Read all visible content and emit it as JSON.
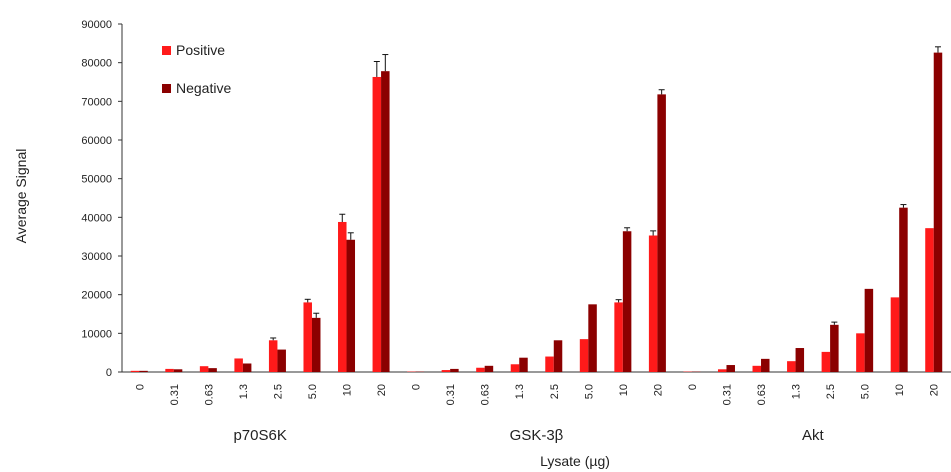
{
  "chart_data": {
    "type": "bar",
    "ylabel": "Average Signal",
    "xlabel": "Lysate (µg)",
    "ylim": [
      0,
      90000
    ],
    "yticks": [
      0,
      10000,
      20000,
      30000,
      40000,
      50000,
      60000,
      70000,
      80000,
      90000
    ],
    "grid": false,
    "legend_position": "top-left",
    "groups": [
      {
        "name": "p70S6K",
        "categories": [
          "0",
          "0.31",
          "0.63",
          "1.3",
          "2.5",
          "5.0",
          "10",
          "20"
        ],
        "series": [
          {
            "name": "Positive",
            "values": [
              300,
              800,
              1500,
              3500,
              8200,
              18000,
              38800,
              76300
            ],
            "errors": [
              0,
              0,
              0,
              0,
              600,
              800,
              2000,
              4000
            ]
          },
          {
            "name": "Negative",
            "values": [
              300,
              700,
              1000,
              2200,
              5800,
              14000,
              34200,
              77800
            ],
            "errors": [
              0,
              0,
              0,
              0,
              0,
              1200,
              1800,
              4300
            ]
          }
        ]
      },
      {
        "name": "GSK-3β",
        "categories": [
          "0",
          "0.31",
          "0.63",
          "1.3",
          "2.5",
          "5.0",
          "10",
          "20"
        ],
        "series": [
          {
            "name": "Positive",
            "values": [
              100,
              500,
              1100,
              2000,
              4000,
              8500,
              18000,
              35300
            ],
            "errors": [
              0,
              0,
              0,
              0,
              0,
              0,
              700,
              1200
            ]
          },
          {
            "name": "Negative",
            "values": [
              100,
              800,
              1600,
              3700,
              8200,
              17500,
              36400,
              71800
            ],
            "errors": [
              0,
              0,
              0,
              0,
              0,
              0,
              900,
              1200
            ]
          }
        ]
      },
      {
        "name": "Akt",
        "categories": [
          "0",
          "0.31",
          "0.63",
          "1.3",
          "2.5",
          "5.0",
          "10",
          "20"
        ],
        "series": [
          {
            "name": "Positive",
            "values": [
              100,
              700,
              1600,
              2800,
              5200,
              10000,
              19300,
              37200
            ],
            "errors": [
              0,
              0,
              0,
              0,
              0,
              0,
              0,
              0
            ]
          },
          {
            "name": "Negative",
            "values": [
              100,
              1800,
              3400,
              6200,
              12200,
              21500,
              42500,
              82600
            ],
            "errors": [
              0,
              0,
              0,
              0,
              700,
              0,
              800,
              1500
            ]
          }
        ]
      }
    ],
    "colors": {
      "Positive": "#ff1a1a",
      "Negative": "#8b0000",
      "axis": "#333333"
    }
  }
}
